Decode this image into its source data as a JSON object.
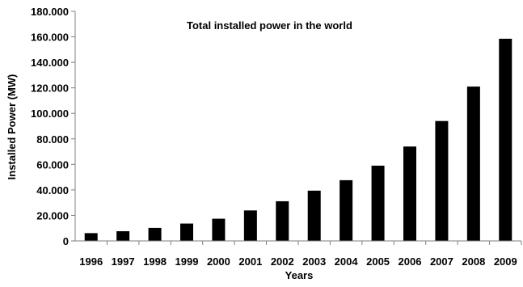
{
  "chart_data": {
    "type": "bar",
    "title": "Total installed  power in the world",
    "xlabel": "Years",
    "ylabel": "Installed Power (MW)",
    "categories": [
      "1996",
      "1997",
      "1998",
      "1999",
      "2000",
      "2001",
      "2002",
      "2003",
      "2004",
      "2005",
      "2006",
      "2007",
      "2008",
      "2009"
    ],
    "series": [
      {
        "values": [
          6100,
          7600,
          10200,
          13600,
          17400,
          23900,
          31100,
          39400,
          47600,
          59000,
          74000,
          94000,
          121000,
          158500
        ],
        "color": "#000000"
      }
    ],
    "ylim": [
      0,
      180000
    ],
    "yticks": [
      0,
      20000,
      40000,
      60000,
      80000,
      100000,
      120000,
      140000,
      160000,
      180000
    ],
    "ytick_labels": [
      "0",
      "20.000",
      "40.000",
      "60.000",
      "80.000",
      "100.000",
      "120.000",
      "140.000",
      "160.000",
      "180.000"
    ],
    "grid": false,
    "legend": "none"
  }
}
